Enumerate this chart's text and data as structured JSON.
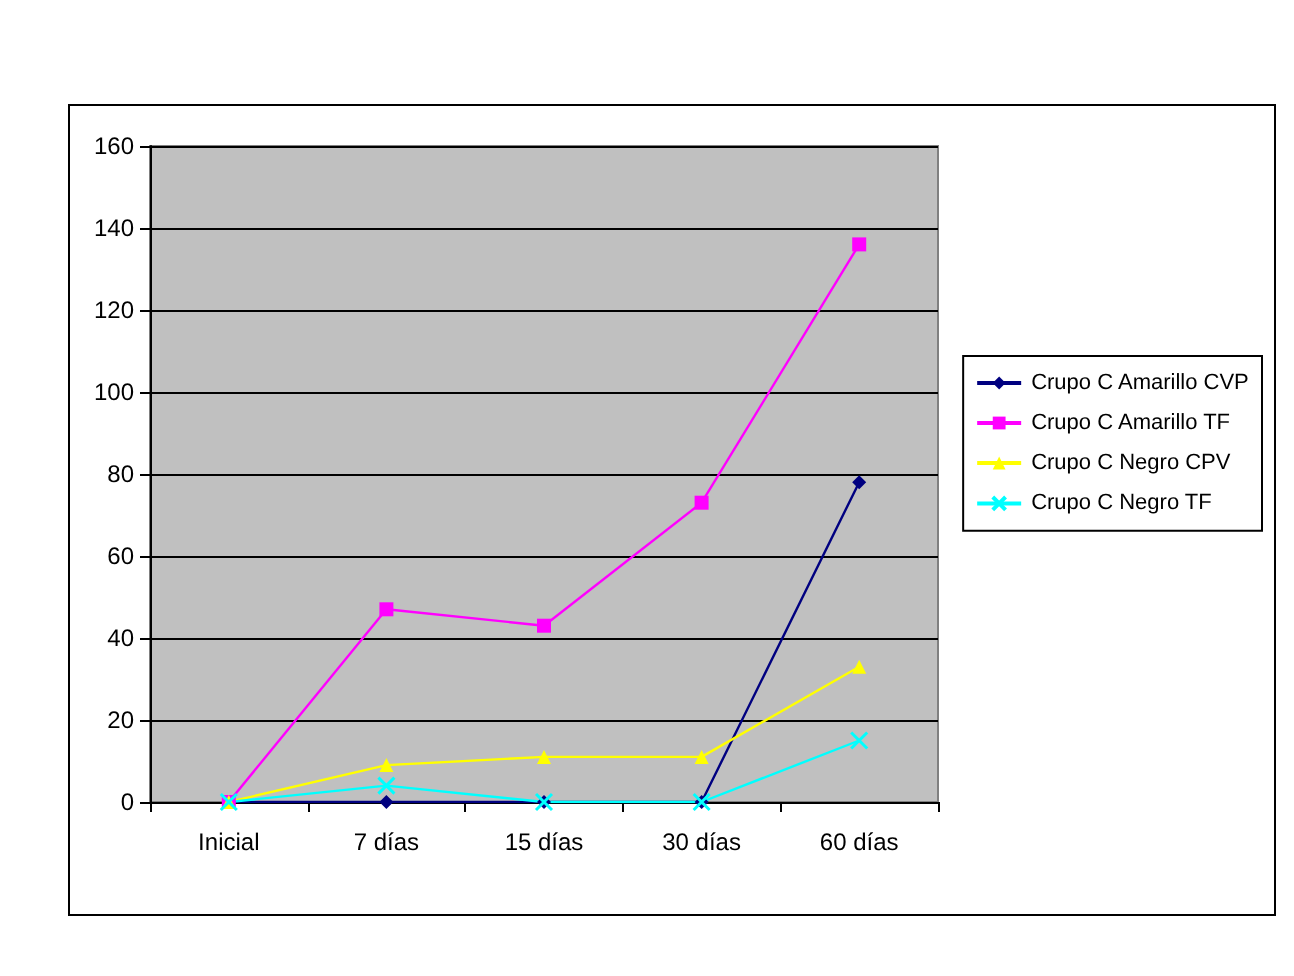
{
  "chart_data": {
    "type": "line",
    "categories": [
      "Inicial",
      "7 días",
      "15 días",
      "30 días",
      "60 días"
    ],
    "series": [
      {
        "name": "Crupo C Amarillo CVP",
        "color": "#000080",
        "marker": "diamond",
        "values": [
          0,
          0,
          0,
          0,
          78
        ]
      },
      {
        "name": "Crupo C Amarillo TF",
        "color": "#ff00ff",
        "marker": "square",
        "values": [
          0,
          47,
          43,
          73,
          136
        ]
      },
      {
        "name": "Crupo C Negro CPV",
        "color": "#ffff00",
        "marker": "triangle",
        "values": [
          0,
          9,
          11,
          11,
          33
        ]
      },
      {
        "name": "Crupo C Negro TF",
        "color": "#00ffff",
        "marker": "cross",
        "values": [
          0,
          4,
          0,
          0,
          15
        ]
      }
    ],
    "ylim": [
      0,
      160
    ],
    "yticks": [
      0,
      20,
      40,
      60,
      80,
      100,
      120,
      140,
      160
    ],
    "grid": "y",
    "legend": "right"
  }
}
